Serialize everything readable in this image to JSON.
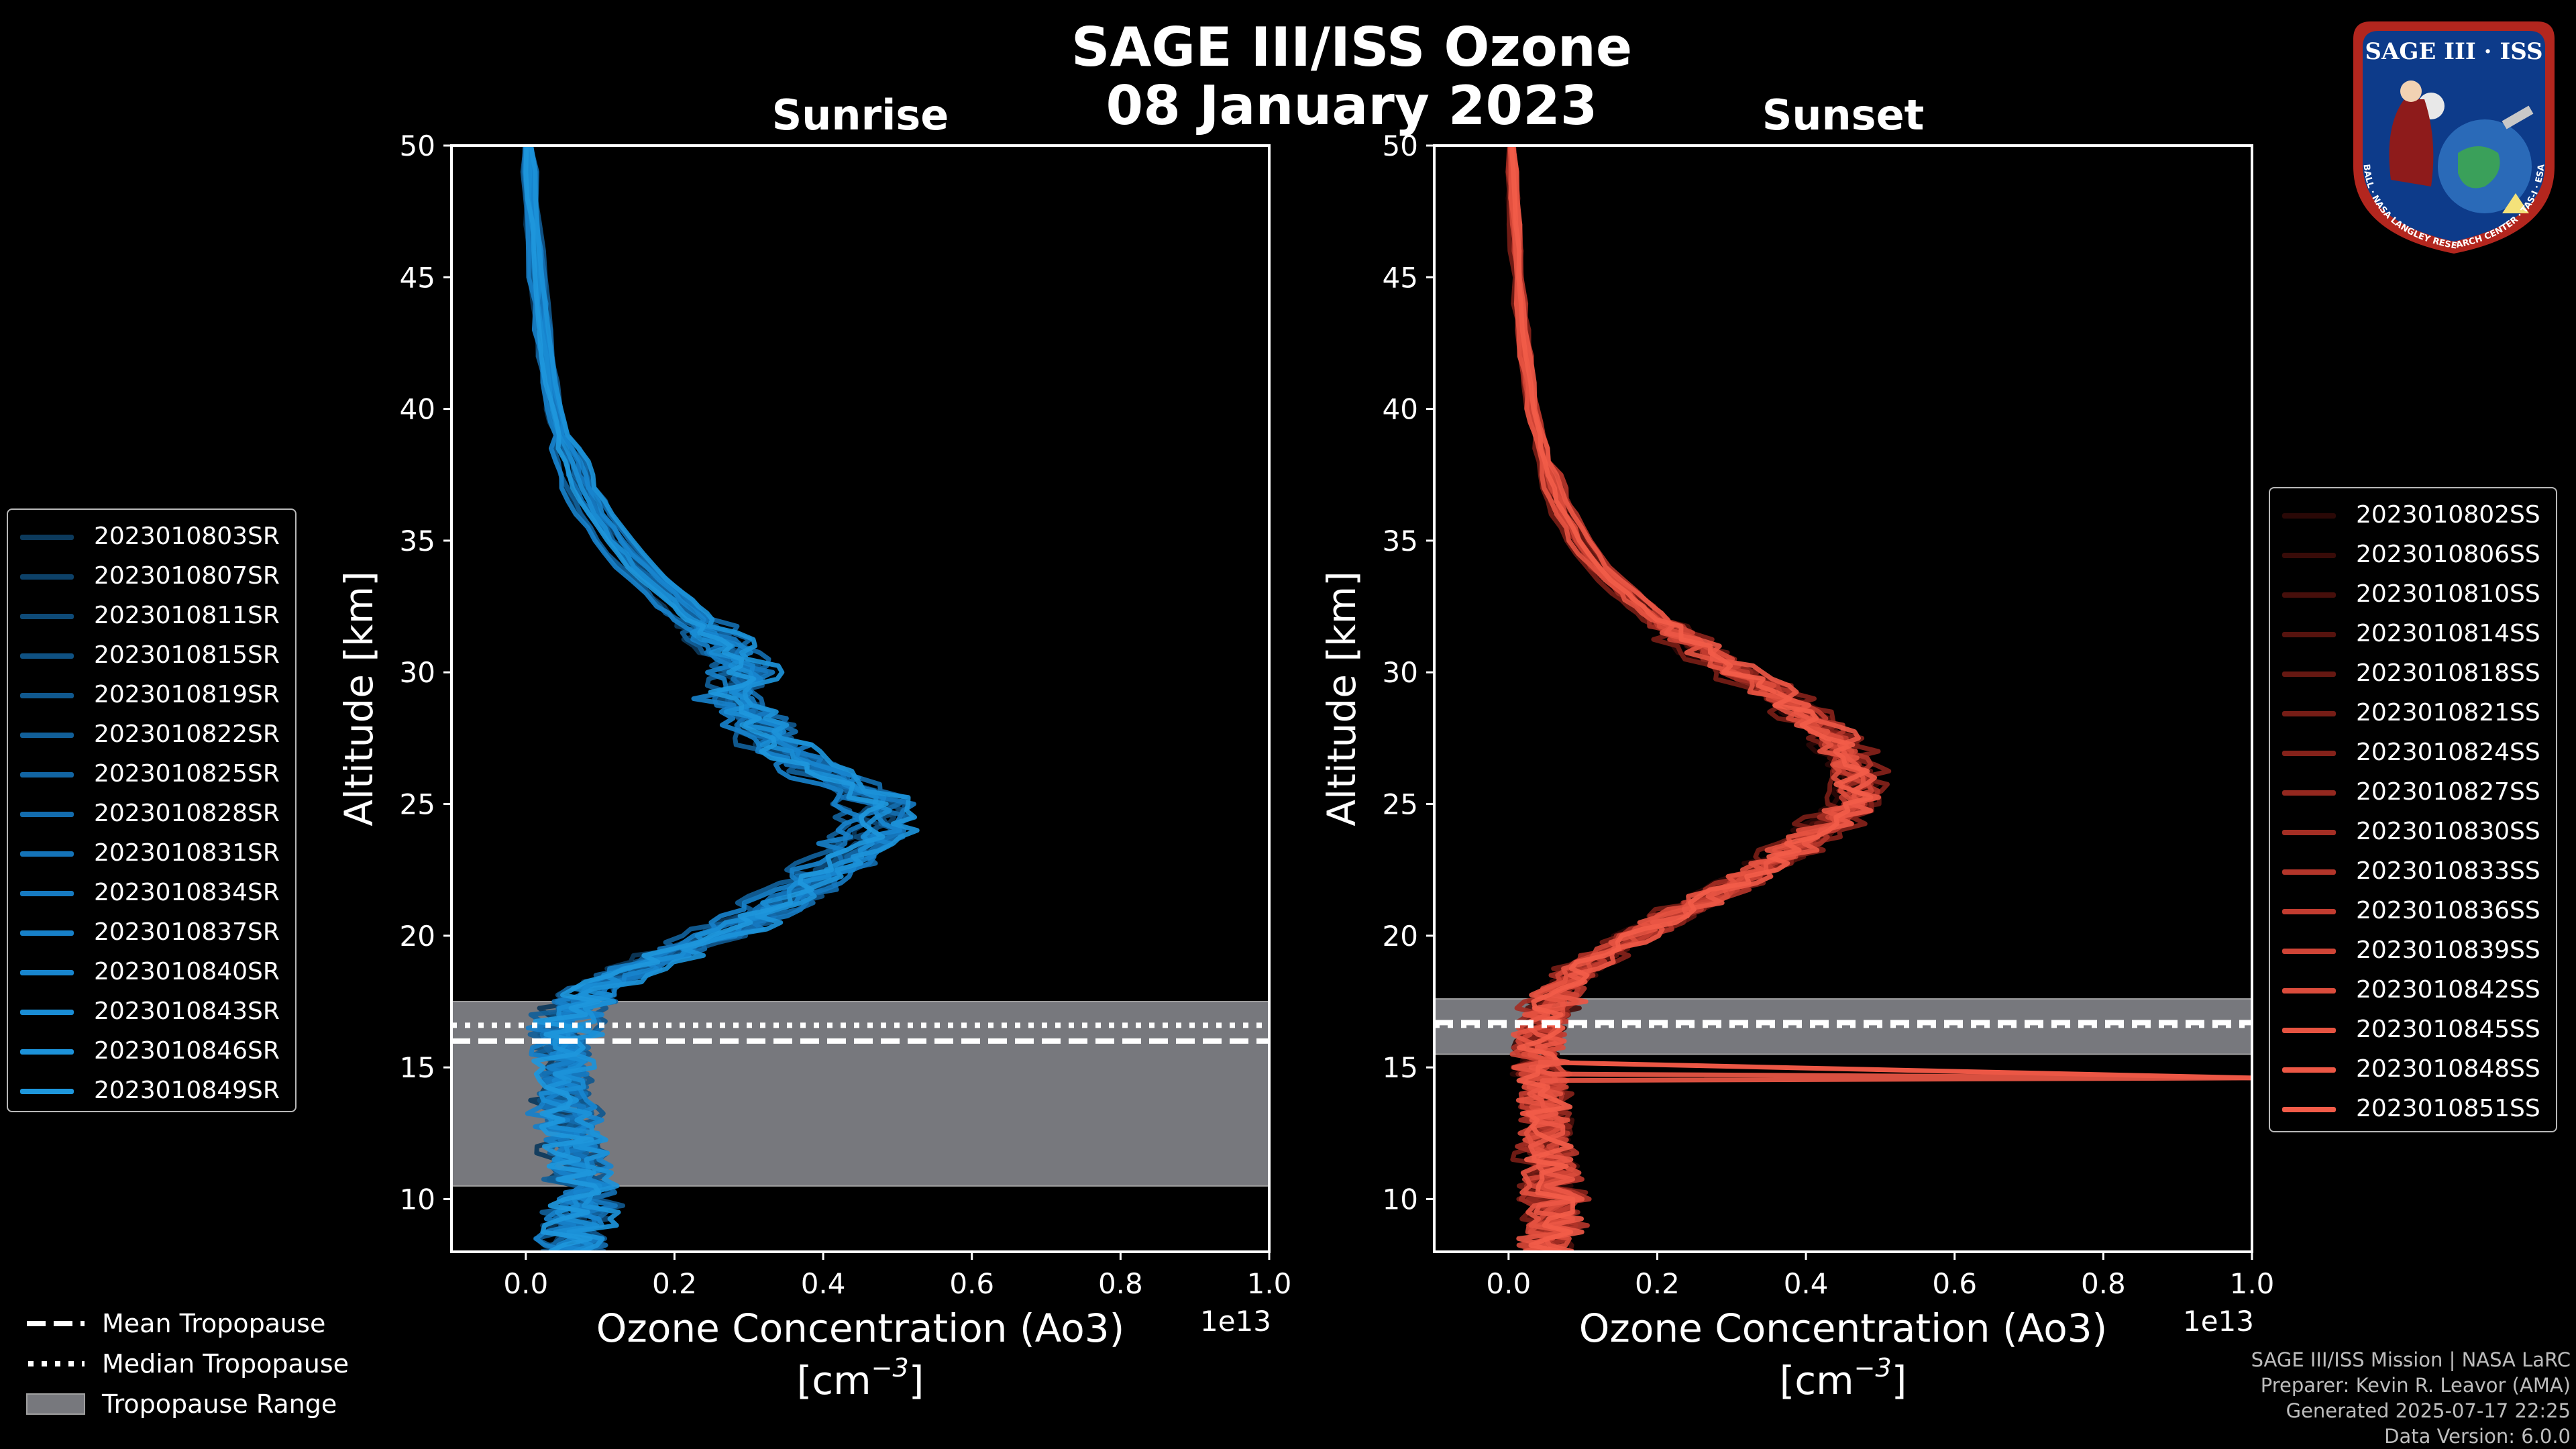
{
  "title_line1": "SAGE III/ISS Ozone",
  "title_line2": "08 January 2023",
  "logo": {
    "text_top": "SAGE III · ISS",
    "text_ring": "BALL · NASA LANGLEY RESEARCH CENTER · TAS-I · ESA"
  },
  "colors": {
    "background": "#000000",
    "sunrise": "#1e90d6",
    "sunset": "#f05a48",
    "tropopause_band": "#77787d"
  },
  "chart_data": [
    {
      "type": "line",
      "panel": "Sunrise",
      "title": "Sunrise",
      "xlabel": "Ozone Concentration (Ao3)",
      "xlabel_unit": "[cm",
      "xlabel_exp": "−3",
      "xlabel_unit_end": "]",
      "ylabel": "Altitude [km]",
      "x_offset_label": "1e13",
      "xlim": [
        -0.1,
        1.0
      ],
      "ylim": [
        8,
        50
      ],
      "xticks": [
        0.0,
        0.2,
        0.4,
        0.6,
        0.8,
        1.0
      ],
      "xtick_labels": [
        "0.0",
        "0.2",
        "0.4",
        "0.6",
        "0.8",
        "1.0"
      ],
      "yticks": [
        10,
        15,
        20,
        25,
        30,
        35,
        40,
        45,
        50
      ],
      "ytick_labels": [
        "10",
        "15",
        "20",
        "25",
        "30",
        "35",
        "40",
        "45",
        "50"
      ],
      "tropopause": {
        "range": [
          10.5,
          17.5
        ],
        "mean": 16.0,
        "median": 16.6
      },
      "base_profile": {
        "altitude": [
          8,
          9,
          10,
          11,
          12,
          13,
          14,
          15,
          16,
          17,
          18,
          19,
          20,
          21,
          22,
          23,
          24,
          25,
          26,
          27,
          28,
          29,
          30,
          31,
          32,
          33,
          34,
          35,
          36,
          37,
          38,
          39,
          40,
          42,
          44,
          46,
          48,
          50
        ],
        "ozone": [
          0.06,
          0.07,
          0.08,
          0.07,
          0.07,
          0.06,
          0.05,
          0.05,
          0.05,
          0.06,
          0.09,
          0.17,
          0.26,
          0.33,
          0.39,
          0.44,
          0.48,
          0.48,
          0.42,
          0.35,
          0.32,
          0.28,
          0.3,
          0.27,
          0.23,
          0.19,
          0.15,
          0.12,
          0.094,
          0.075,
          0.06,
          0.048,
          0.04,
          0.028,
          0.02,
          0.013,
          0.007,
          0.003
        ]
      },
      "series": [
        {
          "name": "2023010803SR",
          "color": "#0c3a5c",
          "shift": -0.02,
          "scale": 0.98,
          "seed": 1
        },
        {
          "name": "2023010807SR",
          "color": "#0d4168",
          "shift": 0.0,
          "scale": 1.01,
          "seed": 2
        },
        {
          "name": "2023010811SR",
          "color": "#0e4a77",
          "shift": 0.01,
          "scale": 0.96,
          "seed": 3
        },
        {
          "name": "2023010815SR",
          "color": "#0f5182",
          "shift": -0.01,
          "scale": 1.03,
          "seed": 4
        },
        {
          "name": "2023010819SR",
          "color": "#10588e",
          "shift": 0.02,
          "scale": 0.99,
          "seed": 5
        },
        {
          "name": "2023010822SR",
          "color": "#115f99",
          "shift": -0.015,
          "scale": 0.94,
          "seed": 6
        },
        {
          "name": "2023010825SR",
          "color": "#1265a3",
          "shift": 0.0,
          "scale": 1.0,
          "seed": 7
        },
        {
          "name": "2023010828SR",
          "color": "#136cae",
          "shift": 0.015,
          "scale": 1.02,
          "seed": 8
        },
        {
          "name": "2023010831SR",
          "color": "#1473b8",
          "shift": -0.005,
          "scale": 0.97,
          "seed": 9
        },
        {
          "name": "2023010834SR",
          "color": "#167ac1",
          "shift": 0.005,
          "scale": 1.04,
          "seed": 10
        },
        {
          "name": "2023010837SR",
          "color": "#1780c9",
          "shift": -0.02,
          "scale": 0.95,
          "seed": 11
        },
        {
          "name": "2023010840SR",
          "color": "#1886cf",
          "shift": 0.01,
          "scale": 1.0,
          "seed": 12
        },
        {
          "name": "2023010843SR",
          "color": "#1a8dd5",
          "shift": 0.0,
          "scale": 0.98,
          "seed": 13
        },
        {
          "name": "2023010846SR",
          "color": "#1c92d9",
          "shift": 0.02,
          "scale": 1.01,
          "seed": 14
        },
        {
          "name": "2023010849SR",
          "color": "#1e97dc",
          "shift": -0.01,
          "scale": 0.99,
          "seed": 15
        }
      ]
    },
    {
      "type": "line",
      "panel": "Sunset",
      "title": "Sunset",
      "xlabel": "Ozone Concentration (Ao3)",
      "xlabel_unit": "[cm",
      "xlabel_exp": "−3",
      "xlabel_unit_end": "]",
      "ylabel": "Altitude [km]",
      "x_offset_label": "1e13",
      "xlim": [
        -0.1,
        1.0
      ],
      "ylim": [
        8,
        50
      ],
      "xticks": [
        0.0,
        0.2,
        0.4,
        0.6,
        0.8,
        1.0
      ],
      "xtick_labels": [
        "0.0",
        "0.2",
        "0.4",
        "0.6",
        "0.8",
        "1.0"
      ],
      "yticks": [
        10,
        15,
        20,
        25,
        30,
        35,
        40,
        45,
        50
      ],
      "ytick_labels": [
        "10",
        "15",
        "20",
        "25",
        "30",
        "35",
        "40",
        "45",
        "50"
      ],
      "tropopause": {
        "range": [
          15.5,
          17.6
        ],
        "mean": 16.7,
        "median": 16.6
      },
      "base_profile": {
        "altitude": [
          8,
          9,
          10,
          11,
          12,
          13,
          14,
          15,
          16,
          17,
          18,
          19,
          20,
          21,
          22,
          23,
          24,
          25,
          26,
          27,
          28,
          29,
          30,
          31,
          32,
          33,
          34,
          35,
          36,
          37,
          38,
          39,
          40,
          42,
          44,
          46,
          48,
          50
        ],
        "ozone": [
          0.05,
          0.06,
          0.06,
          0.06,
          0.05,
          0.05,
          0.05,
          0.04,
          0.04,
          0.05,
          0.07,
          0.11,
          0.17,
          0.24,
          0.31,
          0.37,
          0.42,
          0.47,
          0.47,
          0.45,
          0.42,
          0.37,
          0.31,
          0.25,
          0.2,
          0.16,
          0.12,
          0.095,
          0.075,
          0.06,
          0.05,
          0.04,
          0.032,
          0.022,
          0.016,
          0.011,
          0.007,
          0.004
        ]
      },
      "spike": {
        "series": "2023010848SS",
        "altitude_from": 15.2,
        "altitude_to": 14.6,
        "ozone_to": 1.0
      },
      "series": [
        {
          "name": "2023010802SS",
          "color": "#2a0806",
          "shift": -0.01,
          "scale": 0.99,
          "seed": 21
        },
        {
          "name": "2023010806SS",
          "color": "#380b08",
          "shift": 0.0,
          "scale": 1.01,
          "seed": 22
        },
        {
          "name": "2023010810SS",
          "color": "#470f0b",
          "shift": 0.01,
          "scale": 0.97,
          "seed": 23
        },
        {
          "name": "2023010814SS",
          "color": "#56130e",
          "shift": -0.005,
          "scale": 1.02,
          "seed": 24
        },
        {
          "name": "2023010818SS",
          "color": "#661812",
          "shift": 0.005,
          "scale": 1.0,
          "seed": 25
        },
        {
          "name": "2023010821SS",
          "color": "#761d16",
          "shift": -0.015,
          "scale": 0.98,
          "seed": 26
        },
        {
          "name": "2023010824SS",
          "color": "#85221a",
          "shift": 0.01,
          "scale": 1.03,
          "seed": 27
        },
        {
          "name": "2023010827SS",
          "color": "#94281f",
          "shift": 0.0,
          "scale": 0.99,
          "seed": 28
        },
        {
          "name": "2023010830SS",
          "color": "#a42e24",
          "shift": -0.01,
          "scale": 1.01,
          "seed": 29
        },
        {
          "name": "2023010833SS",
          "color": "#b3352a",
          "shift": 0.015,
          "scale": 0.98,
          "seed": 30
        },
        {
          "name": "2023010836SS",
          "color": "#c23c30",
          "shift": 0.0,
          "scale": 1.0,
          "seed": 31
        },
        {
          "name": "2023010839SS",
          "color": "#cf4436",
          "shift": -0.005,
          "scale": 1.02,
          "seed": 32
        },
        {
          "name": "2023010842SS",
          "color": "#db4c3c",
          "shift": 0.005,
          "scale": 0.97,
          "seed": 33
        },
        {
          "name": "2023010845SS",
          "color": "#e55341",
          "shift": -0.01,
          "scale": 1.0,
          "seed": 34
        },
        {
          "name": "2023010848SS",
          "color": "#ec5745",
          "shift": 0.01,
          "scale": 1.01,
          "seed": 35
        },
        {
          "name": "2023010851SS",
          "color": "#f25c49",
          "shift": 0.0,
          "scale": 0.99,
          "seed": 36
        }
      ]
    }
  ],
  "bottom_legend": [
    {
      "label": "Mean Tropopause",
      "style": "dashed"
    },
    {
      "label": "Median Tropopause",
      "style": "dotted"
    },
    {
      "label": "Tropopause Range",
      "style": "patch"
    }
  ],
  "footer": {
    "line1": "SAGE III/ISS Mission | NASA LaRC",
    "line2": "Preparer: Kevin R. Leavor (AMA)",
    "line3": "Generated 2025-07-17 22:25",
    "line4": "Data Version: 6.0.0"
  }
}
